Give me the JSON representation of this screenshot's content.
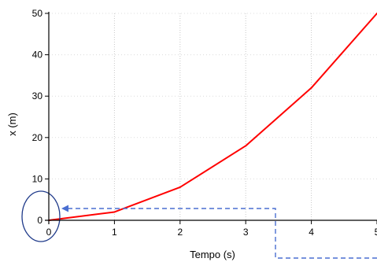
{
  "chart_data": {
    "type": "line",
    "title": "",
    "xlabel": "Tempo (s)",
    "ylabel": "x (m)",
    "xlim": [
      0,
      5
    ],
    "ylim": [
      0,
      50
    ],
    "xticks": [
      "0",
      "1",
      "2",
      "3",
      "4",
      "5"
    ],
    "yticks": [
      "0",
      "10",
      "20",
      "30",
      "40",
      "50"
    ],
    "grid": "vertical dotted",
    "series": [
      {
        "color": "#ff0000",
        "x": [
          0,
          1,
          2,
          3,
          4,
          5
        ],
        "y": [
          0,
          2,
          8,
          18,
          32,
          50
        ]
      }
    ],
    "annotations": {
      "circle_color": "#1f3a8a",
      "dashed_arrow_color": "#4a6fd1"
    }
  }
}
